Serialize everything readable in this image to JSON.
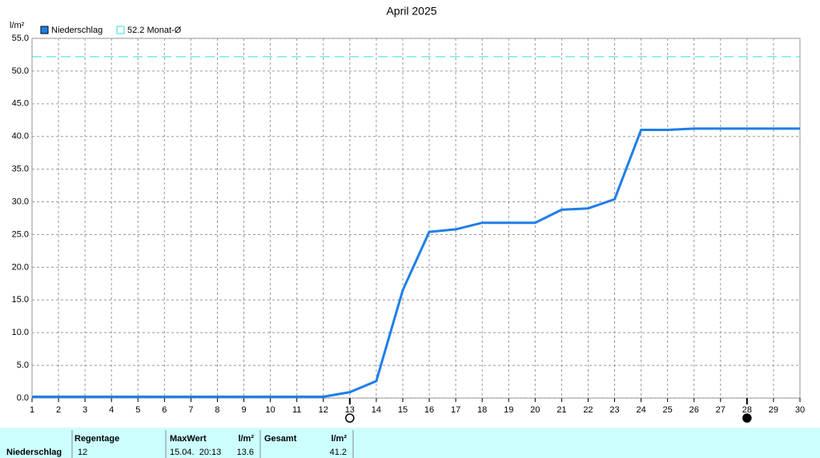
{
  "chart_data": {
    "type": "line",
    "title": "April 2025",
    "y_unit": "l/m²",
    "x": [
      1,
      2,
      3,
      4,
      5,
      6,
      7,
      8,
      9,
      10,
      11,
      12,
      13,
      14,
      15,
      16,
      17,
      18,
      19,
      20,
      21,
      22,
      23,
      24,
      25,
      26,
      27,
      28,
      29,
      30
    ],
    "series": [
      {
        "name": "Niederschlag",
        "color": "#1e7fe8",
        "values": [
          0.2,
          0.2,
          0.2,
          0.2,
          0.2,
          0.2,
          0.2,
          0.2,
          0.2,
          0.2,
          0.2,
          0.2,
          0.9,
          2.6,
          16.5,
          25.4,
          25.8,
          26.8,
          26.8,
          26.8,
          28.8,
          29.0,
          30.4,
          41.0,
          41.0,
          41.2,
          41.2,
          41.2,
          41.2,
          41.2
        ]
      }
    ],
    "reference": {
      "value": 52.2,
      "label": "52.2 Monat-Ø",
      "color": "#33dddd"
    },
    "xlim": [
      1,
      30
    ],
    "xticks": [
      1,
      2,
      3,
      4,
      5,
      6,
      7,
      8,
      9,
      10,
      11,
      12,
      13,
      14,
      15,
      16,
      17,
      18,
      19,
      20,
      21,
      22,
      23,
      24,
      25,
      26,
      27,
      28,
      29,
      30
    ],
    "ylim": [
      0,
      55
    ],
    "yticks": [
      {
        "value": 0,
        "label": "0.0"
      },
      {
        "value": 5,
        "label": "5.0"
      },
      {
        "value": 10,
        "label": "10.0"
      },
      {
        "value": 15,
        "label": "15.0"
      },
      {
        "value": 20,
        "label": "20.0"
      },
      {
        "value": 25,
        "label": "25.0"
      },
      {
        "value": 30,
        "label": "30.0"
      },
      {
        "value": 35,
        "label": "35.0"
      },
      {
        "value": 40,
        "label": "40.0"
      },
      {
        "value": 45,
        "label": "45.0"
      },
      {
        "value": 50,
        "label": "50.0"
      },
      {
        "value": 55,
        "label": "55.0"
      }
    ],
    "grid": true,
    "moon_phases": [
      {
        "x": 13,
        "kind": "open"
      },
      {
        "x": 28,
        "kind": "filled"
      }
    ]
  },
  "summary_table": {
    "headers": [
      "Regentage",
      "MaxWert",
      "l/m²",
      "Gesamt",
      "l/m²"
    ],
    "row": [
      "Niederschlag",
      12,
      "15.04.  20:13",
      13.6,
      41.2
    ]
  }
}
